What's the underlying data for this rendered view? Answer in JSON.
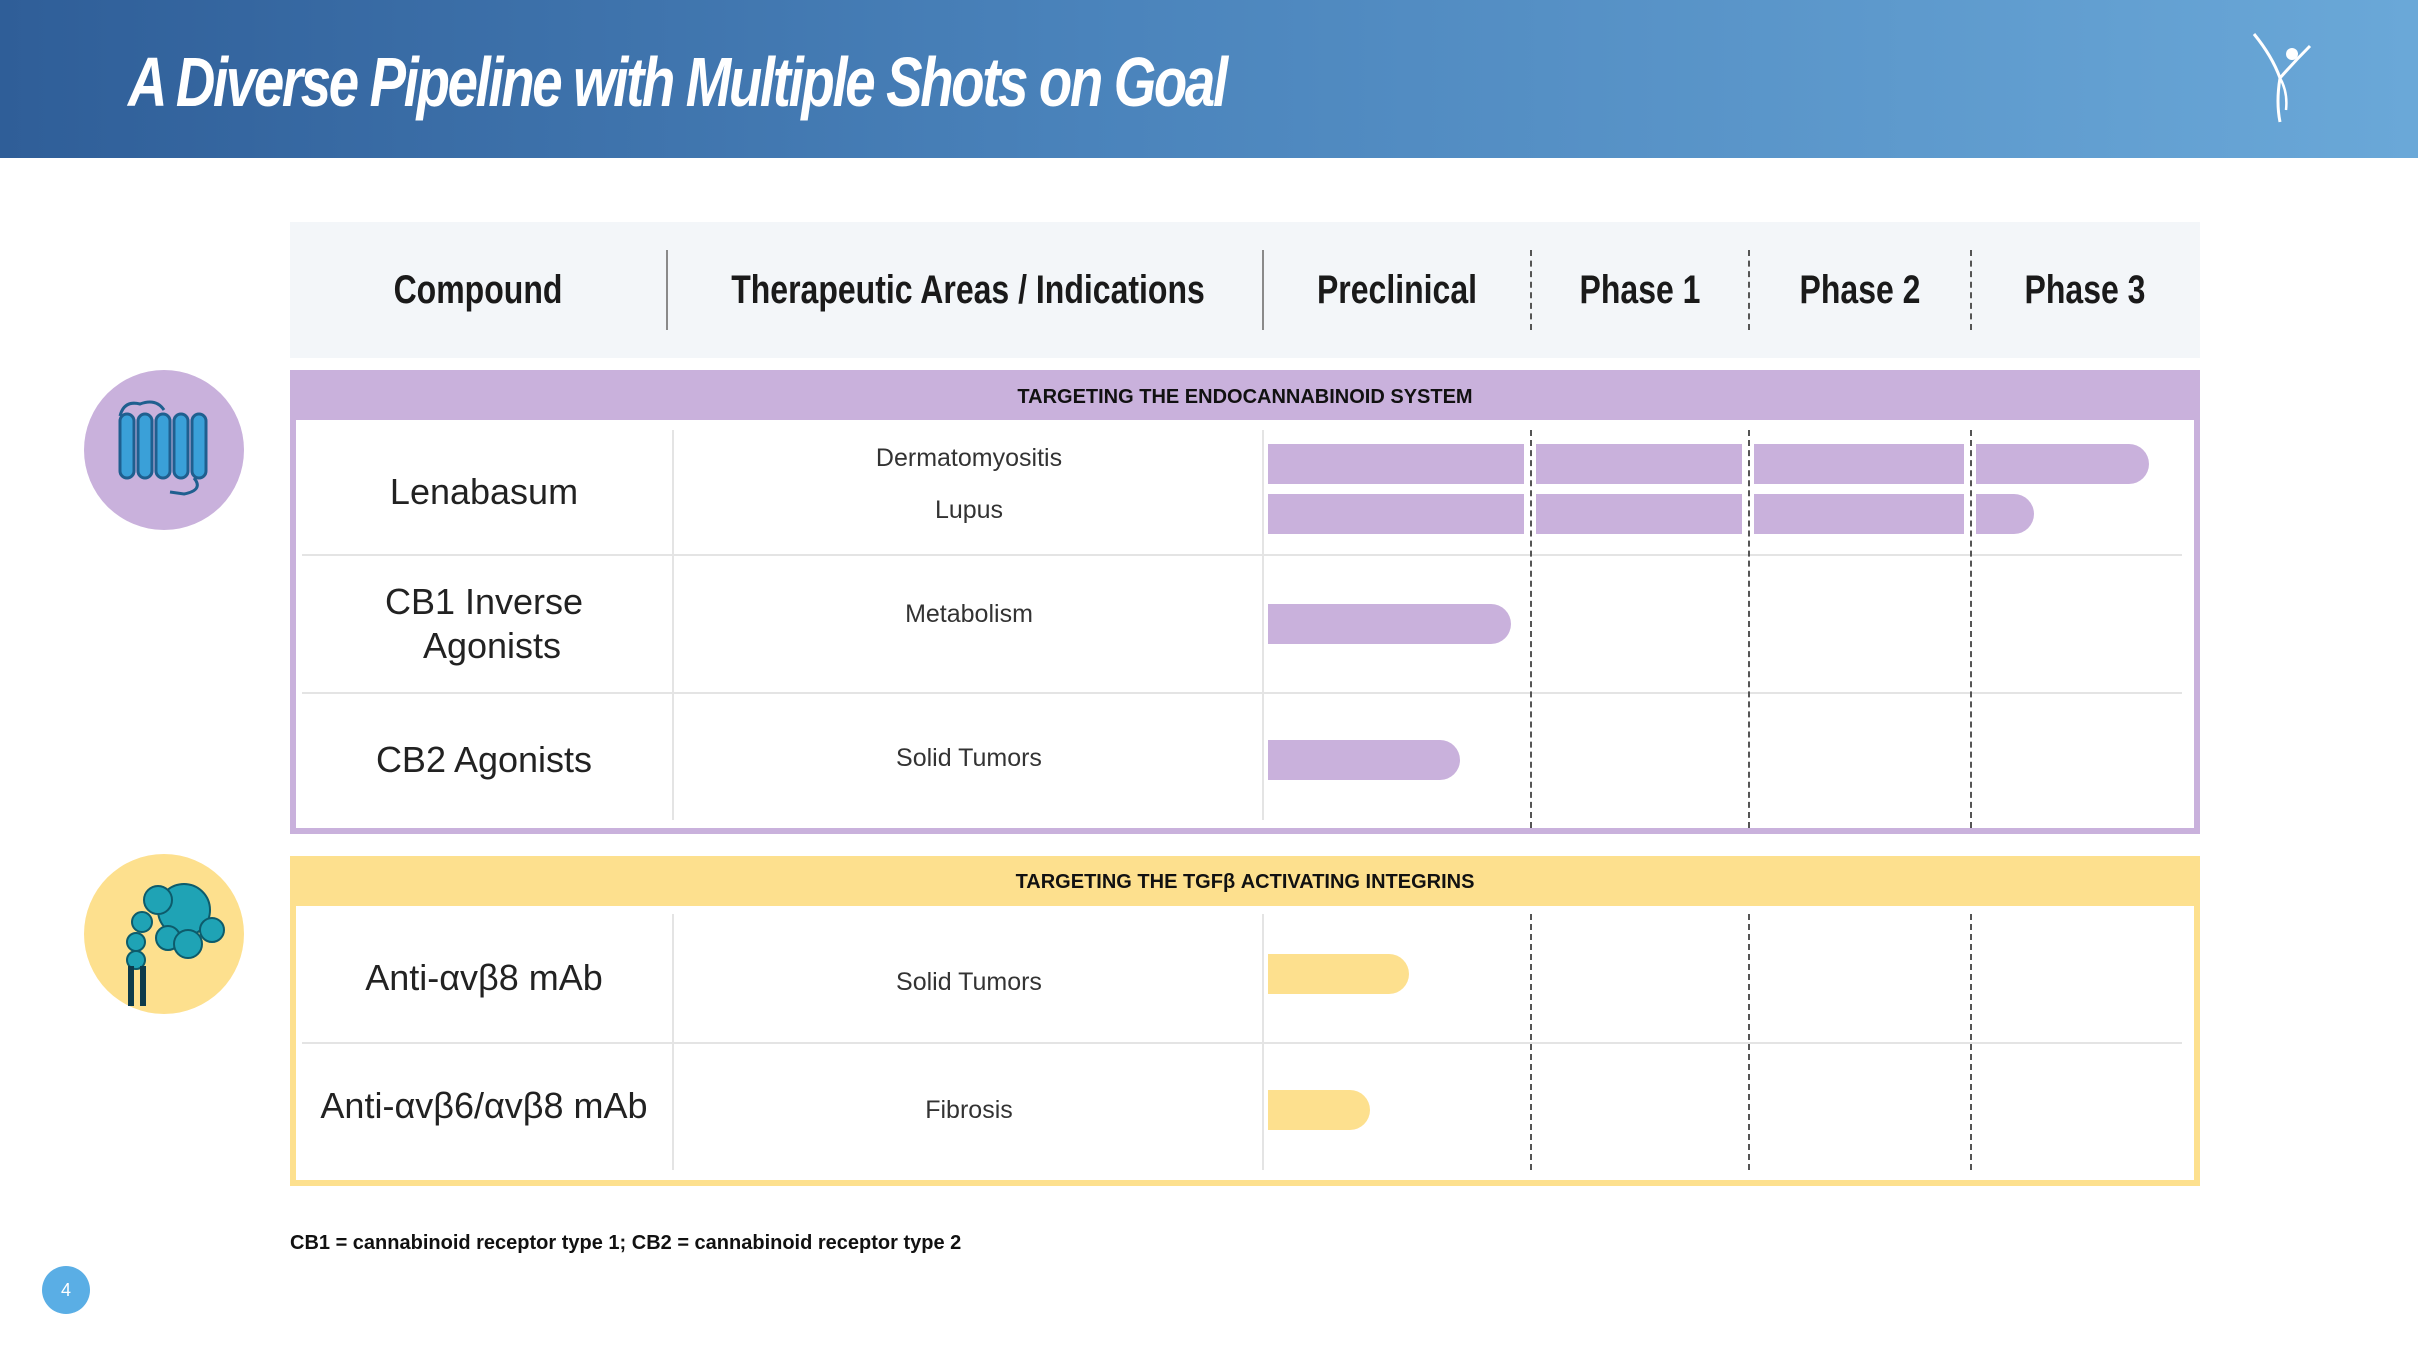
{
  "title": "A Diverse Pipeline with Multiple Shots on Goal",
  "colors": {
    "purple": "#c9b1dc",
    "yellow": "#fde08e",
    "header_blue": "#2f5e98"
  },
  "columns": {
    "compound": "Compound",
    "indications": "Therapeutic Areas / Indications",
    "preclinical": "Preclinical",
    "phase1": "Phase 1",
    "phase2": "Phase 2",
    "phase3": "Phase 3"
  },
  "sections": [
    {
      "band": "TARGETING THE ENDOCANNABINOID SYSTEM",
      "icon": "receptor-icon",
      "rows": [
        {
          "compound": "Lenabasum",
          "indications": [
            "Dermatomyositis",
            "Lupus"
          ],
          "stage_progress": [
            3.9,
            3.3
          ]
        },
        {
          "compound_line1": "CB1 Inverse",
          "compound_line2": "Agonists",
          "indications": [
            "Metabolism"
          ],
          "stage_progress": [
            0.95
          ]
        },
        {
          "compound": "CB2 Agonists",
          "indications": [
            "Solid Tumors"
          ],
          "stage_progress": [
            0.75
          ]
        }
      ]
    },
    {
      "band": "TARGETING THE TGFβ  ACTIVATING INTEGRINS",
      "icon": "integrin-icon",
      "rows": [
        {
          "compound": "Anti-αvβ8 mAb",
          "indications": [
            "Solid Tumors"
          ],
          "stage_progress": [
            0.55
          ]
        },
        {
          "compound": "Anti-αvβ6/αvβ8 mAb",
          "indications": [
            "Fibrosis"
          ],
          "stage_progress": [
            0.4
          ]
        }
      ]
    }
  ],
  "footnote": "CB1 = cannabinoid receptor type 1; CB2 = cannabinoid receptor type 2",
  "page_number": "4"
}
